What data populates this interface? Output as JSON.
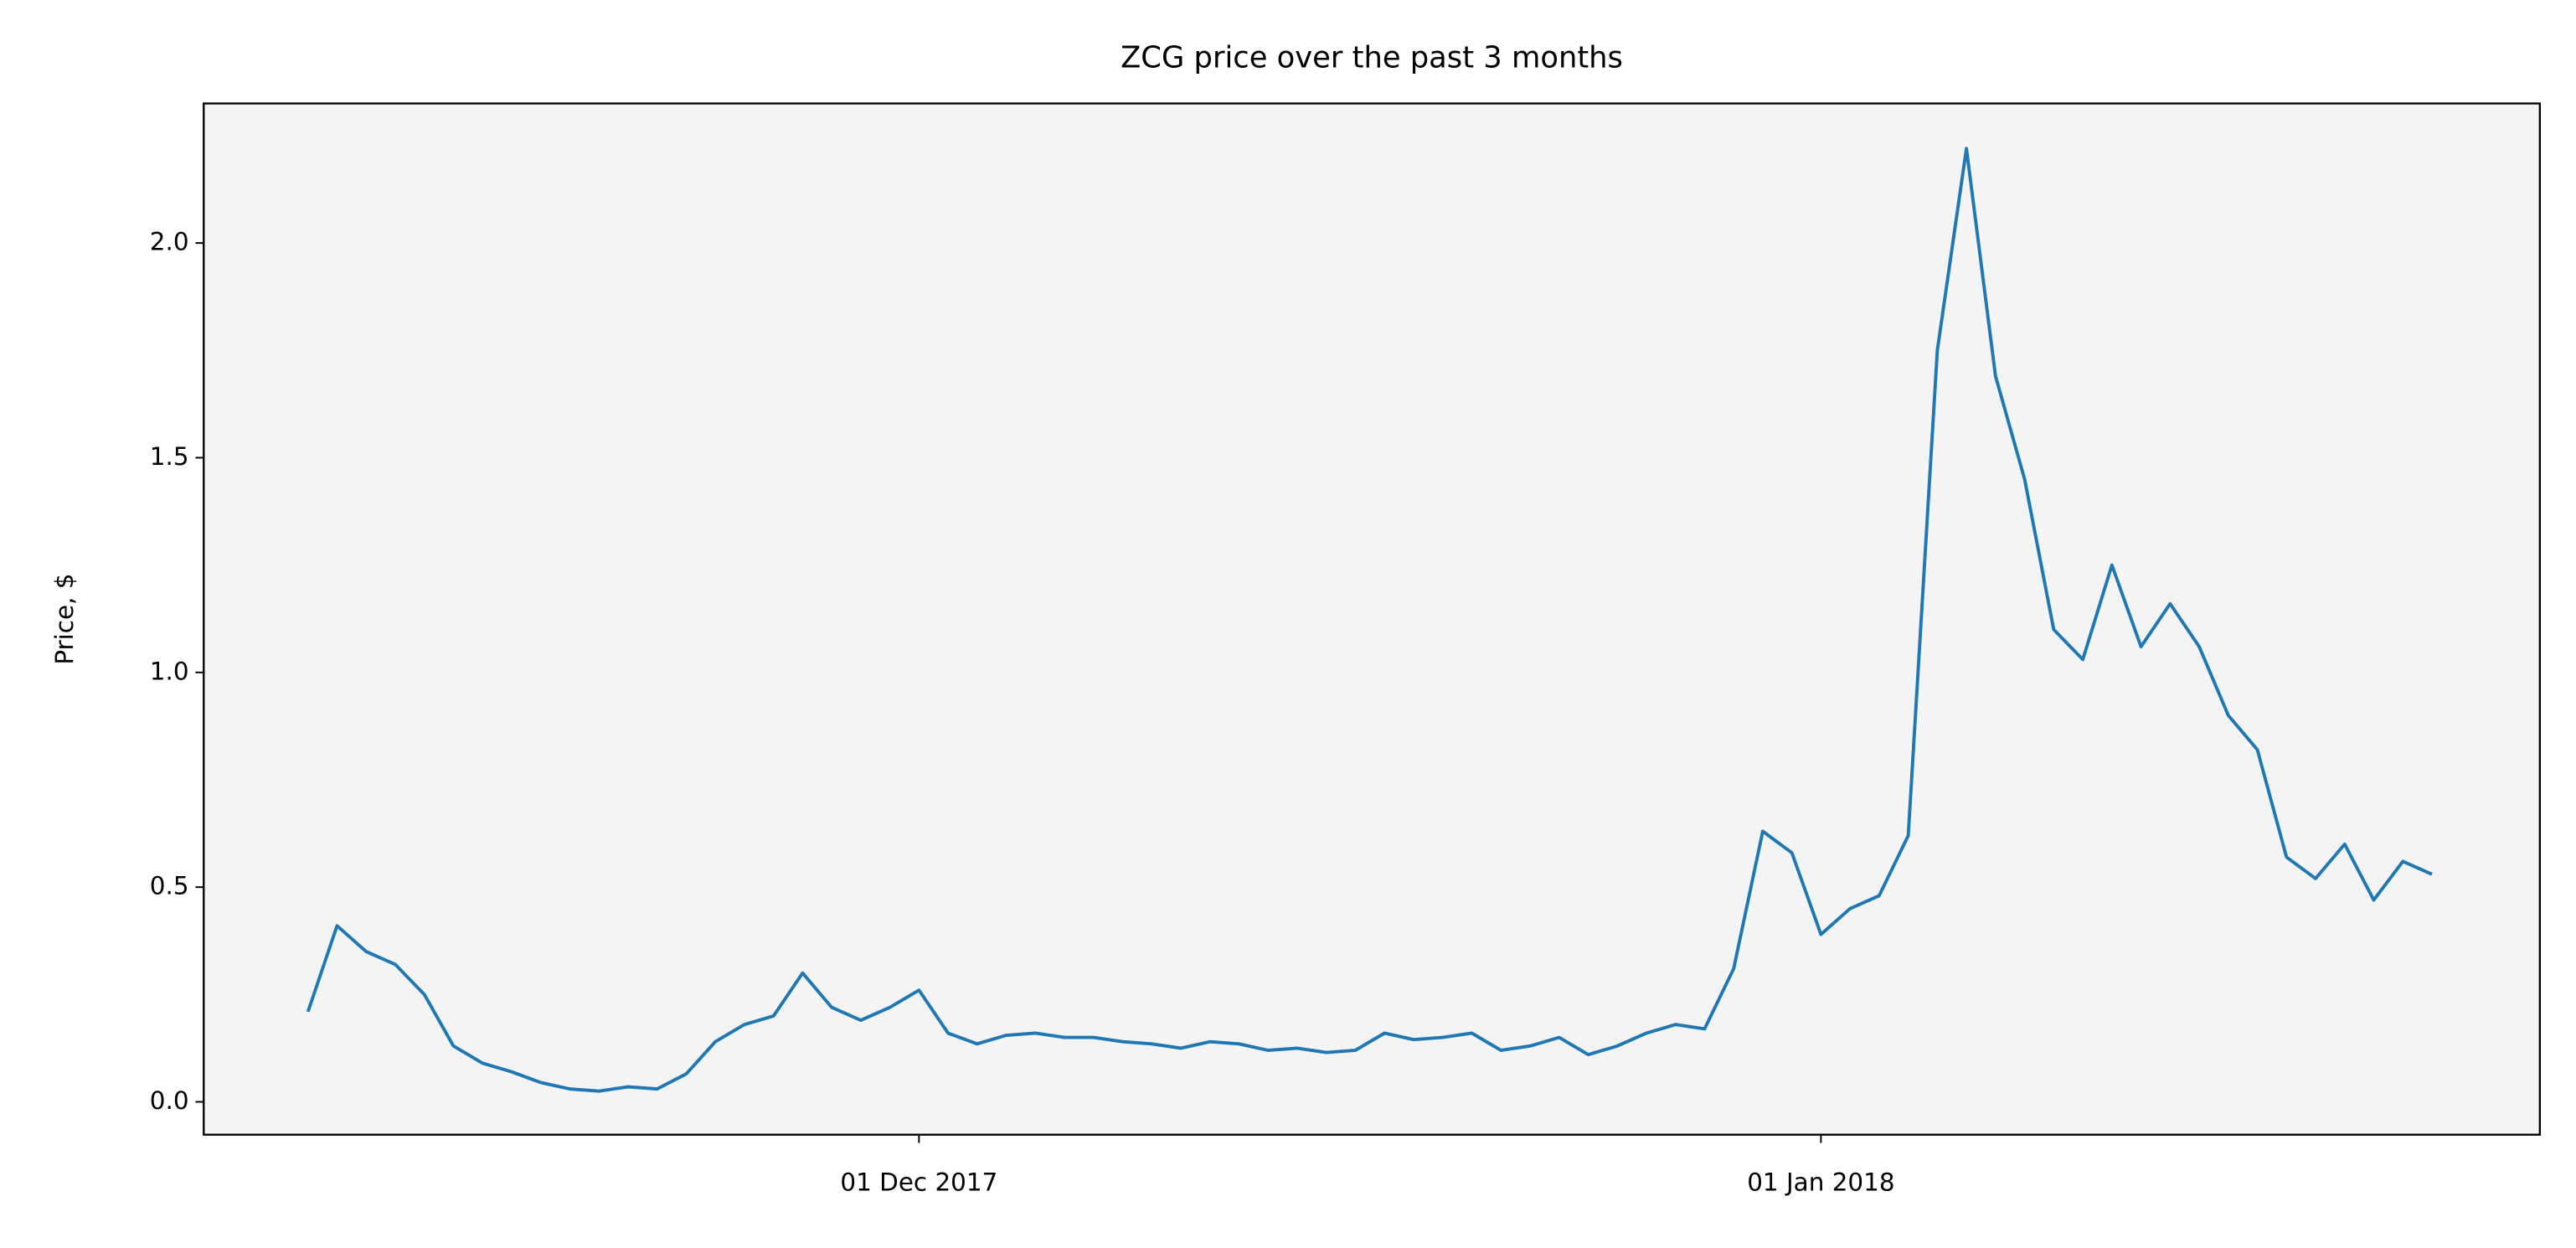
{
  "chart_data": {
    "type": "line",
    "title": "ZCG price over the past 3 months",
    "y_label": "Price, $",
    "x": [
      "2017-11-10",
      "2017-11-11",
      "2017-11-12",
      "2017-11-13",
      "2017-11-14",
      "2017-11-15",
      "2017-11-16",
      "2017-11-17",
      "2017-11-18",
      "2017-11-19",
      "2017-11-20",
      "2017-11-21",
      "2017-11-22",
      "2017-11-23",
      "2017-11-24",
      "2017-11-25",
      "2017-11-26",
      "2017-11-27",
      "2017-11-28",
      "2017-11-29",
      "2017-11-30",
      "2017-12-01",
      "2017-12-02",
      "2017-12-03",
      "2017-12-04",
      "2017-12-05",
      "2017-12-06",
      "2017-12-07",
      "2017-12-08",
      "2017-12-09",
      "2017-12-10",
      "2017-12-11",
      "2017-12-12",
      "2017-12-13",
      "2017-12-14",
      "2017-12-15",
      "2017-12-16",
      "2017-12-17",
      "2017-12-18",
      "2017-12-19",
      "2017-12-20",
      "2017-12-21",
      "2017-12-22",
      "2017-12-23",
      "2017-12-24",
      "2017-12-25",
      "2017-12-26",
      "2017-12-27",
      "2017-12-28",
      "2017-12-29",
      "2017-12-30",
      "2017-12-31",
      "2018-01-01",
      "2018-01-02",
      "2018-01-03",
      "2018-01-04",
      "2018-01-05",
      "2018-01-06",
      "2018-01-07",
      "2018-01-08",
      "2018-01-09",
      "2018-01-10",
      "2018-01-11",
      "2018-01-12",
      "2018-01-13",
      "2018-01-14",
      "2018-01-15",
      "2018-01-16",
      "2018-01-17",
      "2018-01-18",
      "2018-01-19",
      "2018-01-20",
      "2018-01-21",
      "2018-01-22"
    ],
    "series": [
      {
        "name": "ZCG",
        "color": "#1f77b4",
        "values": [
          0.21,
          0.41,
          0.35,
          0.32,
          0.25,
          0.13,
          0.09,
          0.07,
          0.045,
          0.03,
          0.025,
          0.035,
          0.03,
          0.065,
          0.14,
          0.18,
          0.2,
          0.3,
          0.22,
          0.19,
          0.22,
          0.26,
          0.16,
          0.135,
          0.155,
          0.16,
          0.15,
          0.15,
          0.14,
          0.135,
          0.125,
          0.14,
          0.135,
          0.12,
          0.125,
          0.115,
          0.12,
          0.16,
          0.145,
          0.15,
          0.16,
          0.12,
          0.13,
          0.15,
          0.11,
          0.13,
          0.16,
          0.18,
          0.17,
          0.31,
          0.63,
          0.58,
          0.39,
          0.45,
          0.48,
          0.62,
          1.75,
          2.22,
          1.69,
          1.45,
          1.1,
          1.03,
          1.25,
          1.06,
          1.16,
          1.06,
          0.9,
          0.82,
          0.57,
          0.52,
          0.6,
          0.47,
          0.56,
          0.53
        ]
      }
    ],
    "xlim": [
      "2017-11-06T10:00",
      "2018-01-25T17:00"
    ],
    "xticks": [
      {
        "value": "2017-12-01",
        "label": "01 Dec 2017"
      },
      {
        "value": "2018-01-01",
        "label": "01 Jan 2018"
      }
    ],
    "ylim": [
      -0.0765,
      2.325
    ],
    "yticks": [
      {
        "value": 0,
        "label": "0.0"
      },
      {
        "value": 0.5,
        "label": "0.5"
      },
      {
        "value": 1,
        "label": "1.0"
      },
      {
        "value": 1.5,
        "label": "1.5"
      },
      {
        "value": 2,
        "label": "2.0"
      }
    ],
    "background": "#f4f4f4",
    "grid": false
  }
}
